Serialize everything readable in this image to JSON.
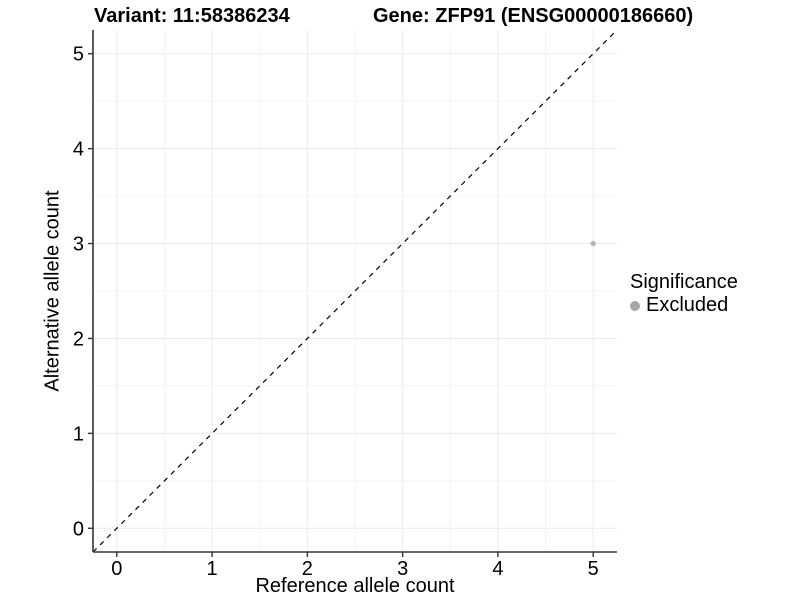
{
  "titles": {
    "variant": "Variant: 11:58386234",
    "gene": "Gene: ZFP91 (ENSG00000186660)"
  },
  "legend": {
    "title": "Significance",
    "items": [
      {
        "label": "Excluded",
        "color": "#a8a8a8"
      }
    ]
  },
  "chart_data": {
    "type": "scatter",
    "title_left": "Variant: 11:58386234",
    "title_right": "Gene: ZFP91 (ENSG00000186660)",
    "xlabel": "Reference allele count",
    "ylabel": "Alternative allele count",
    "xlim": [
      -0.25,
      5.25
    ],
    "ylim": [
      -0.25,
      5.25
    ],
    "x_ticks": [
      0,
      1,
      2,
      3,
      4,
      5
    ],
    "y_ticks": [
      0,
      1,
      2,
      3,
      4,
      5
    ],
    "x_minor_ticks": [
      0.5,
      1.5,
      2.5,
      3.5,
      4.5
    ],
    "y_minor_ticks": [
      0.5,
      1.5,
      2.5,
      3.5,
      4.5
    ],
    "grid": true,
    "legend_position": "right",
    "legend_title": "Significance",
    "series": [
      {
        "name": "Excluded",
        "color": "#a8a8a8",
        "points": [
          {
            "x": 5,
            "y": 3
          }
        ]
      }
    ],
    "reference_line": {
      "type": "identity",
      "equation": "y = x",
      "style": "dashed",
      "color": "#000000"
    },
    "style": {
      "panel_background": "#ffffff",
      "major_grid_color": "#ebebeb",
      "minor_grid_color": "#f4f4f4",
      "axis_line_color": "#333333",
      "tick_color": "#333333",
      "text_color": "#000000",
      "point_color": "#b3b3b3"
    }
  }
}
